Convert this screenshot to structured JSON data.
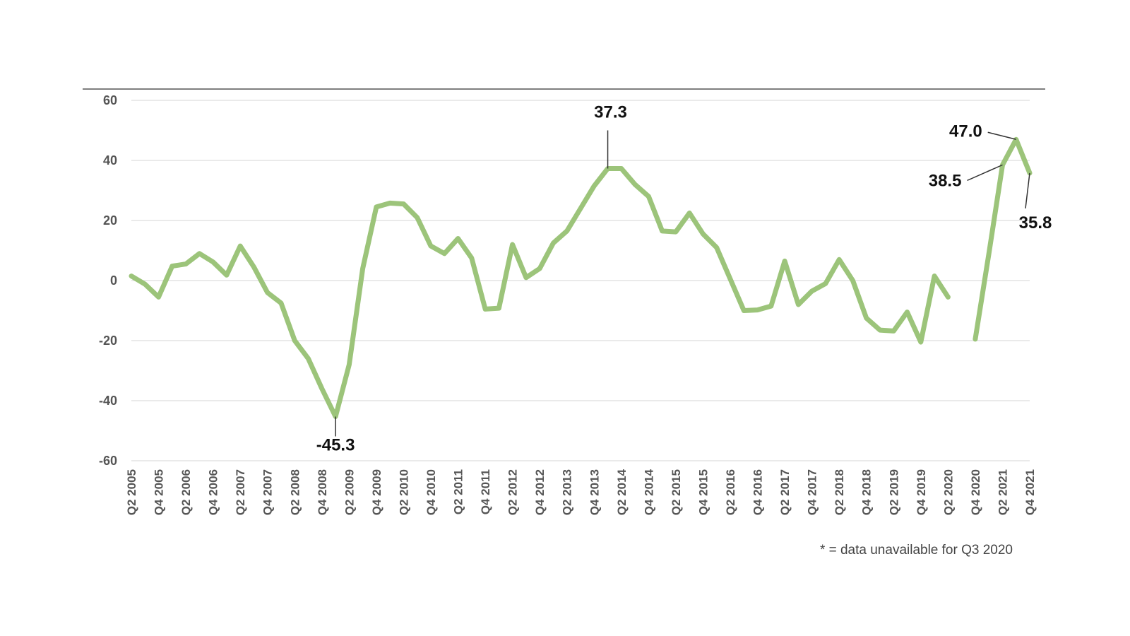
{
  "chart_data": {
    "type": "line",
    "ylim": [
      -60,
      60
    ],
    "yticks": [
      60,
      40,
      20,
      0,
      -20,
      -40,
      -60
    ],
    "x_all": [
      "Q2 2005",
      "Q3 2005",
      "Q4 2005",
      "Q1 2006",
      "Q2 2006",
      "Q3 2006",
      "Q4 2006",
      "Q1 2007",
      "Q2 2007",
      "Q3 2007",
      "Q4 2007",
      "Q1 2008",
      "Q2 2008",
      "Q3 2008",
      "Q4 2008",
      "Q1 2009",
      "Q2 2009",
      "Q3 2009",
      "Q4 2009",
      "Q1 2010",
      "Q2 2010",
      "Q3 2010",
      "Q4 2010",
      "Q1 2011",
      "Q2 2011",
      "Q3 2011",
      "Q4 2011",
      "Q1 2012",
      "Q2 2012",
      "Q3 2012",
      "Q4 2012",
      "Q1 2013",
      "Q2 2013",
      "Q3 2013",
      "Q4 2013",
      "Q1 2014",
      "Q2 2014",
      "Q3 2014",
      "Q4 2014",
      "Q1 2015",
      "Q2 2015",
      "Q3 2015",
      "Q4 2015",
      "Q1 2016",
      "Q2 2016",
      "Q3 2016",
      "Q4 2016",
      "Q1 2017",
      "Q2 2017",
      "Q3 2017",
      "Q4 2017",
      "Q1 2018",
      "Q2 2018",
      "Q3 2018",
      "Q4 2018",
      "Q1 2019",
      "Q2 2019",
      "Q3 2019",
      "Q4 2019",
      "Q1 2020",
      "Q2 2020",
      "Q3 2020",
      "Q4 2020",
      "Q1 2021",
      "Q2 2021",
      "Q3 2021",
      "Q4 2021"
    ],
    "x_tick_labels": [
      "Q2 2005",
      "Q4 2005",
      "Q2 2006",
      "Q4 2006",
      "Q2 2007",
      "Q4 2007",
      "Q2 2008",
      "Q4 2008",
      "Q2 2009",
      "Q4 2009",
      "Q2 2010",
      "Q4 2010",
      "Q2 2011",
      "Q4 2011",
      "Q2 2012",
      "Q4 2012",
      "Q2 2013",
      "Q4 2013",
      "Q2 2014",
      "Q4 2014",
      "Q2 2015",
      "Q4 2015",
      "Q2 2016",
      "Q4 2016",
      "Q2 2017",
      "Q4 2017",
      "Q2 2018",
      "Q4 2018",
      "Q2 2019",
      "Q4 2019",
      "Q2 2020",
      "Q4 2020",
      "Q2 2021",
      "Q4 2021"
    ],
    "series": [
      {
        "color": "#9cc47a",
        "values": [
          1.5,
          -1.2,
          -5.5,
          4.8,
          5.5,
          9.0,
          6.2,
          1.8,
          11.5,
          4.5,
          -4.0,
          -7.5,
          -20.0,
          -26.0,
          -36.0,
          -45.3,
          -28.0,
          4.0,
          24.5,
          25.8,
          25.5,
          21.0,
          11.5,
          9.0,
          14.0,
          7.5,
          -9.5,
          -9.2,
          12.0,
          1.0,
          4.0,
          12.5,
          16.5,
          24.0,
          31.5,
          37.3,
          37.3,
          32.0,
          28.0,
          16.5,
          16.2,
          22.5,
          15.5,
          11.0,
          0.5,
          -10.0,
          -9.8,
          -8.5,
          6.5,
          -8.0,
          -3.5,
          -1.0,
          7.0,
          0.0,
          -12.5,
          -16.5,
          -16.8,
          -10.5,
          -20.5,
          1.5,
          -5.5,
          null,
          -19.5,
          9.0,
          38.5,
          47.0,
          35.8
        ]
      }
    ],
    "annotations": [
      {
        "text": "-45.3",
        "x": "Q1 2009",
        "y": -45.3
      },
      {
        "text": "37.3",
        "x": "Q1 2014",
        "y": 37.3
      },
      {
        "text": "47.0",
        "x": "Q3 2021",
        "y": 47.0
      },
      {
        "text": "38.5",
        "x": "Q2 2021",
        "y": 38.5
      },
      {
        "text": "35.8",
        "x": "Q4 2021",
        "y": 35.8
      }
    ],
    "footnote": "* = data unavailable for Q3 2020",
    "grid": true
  }
}
